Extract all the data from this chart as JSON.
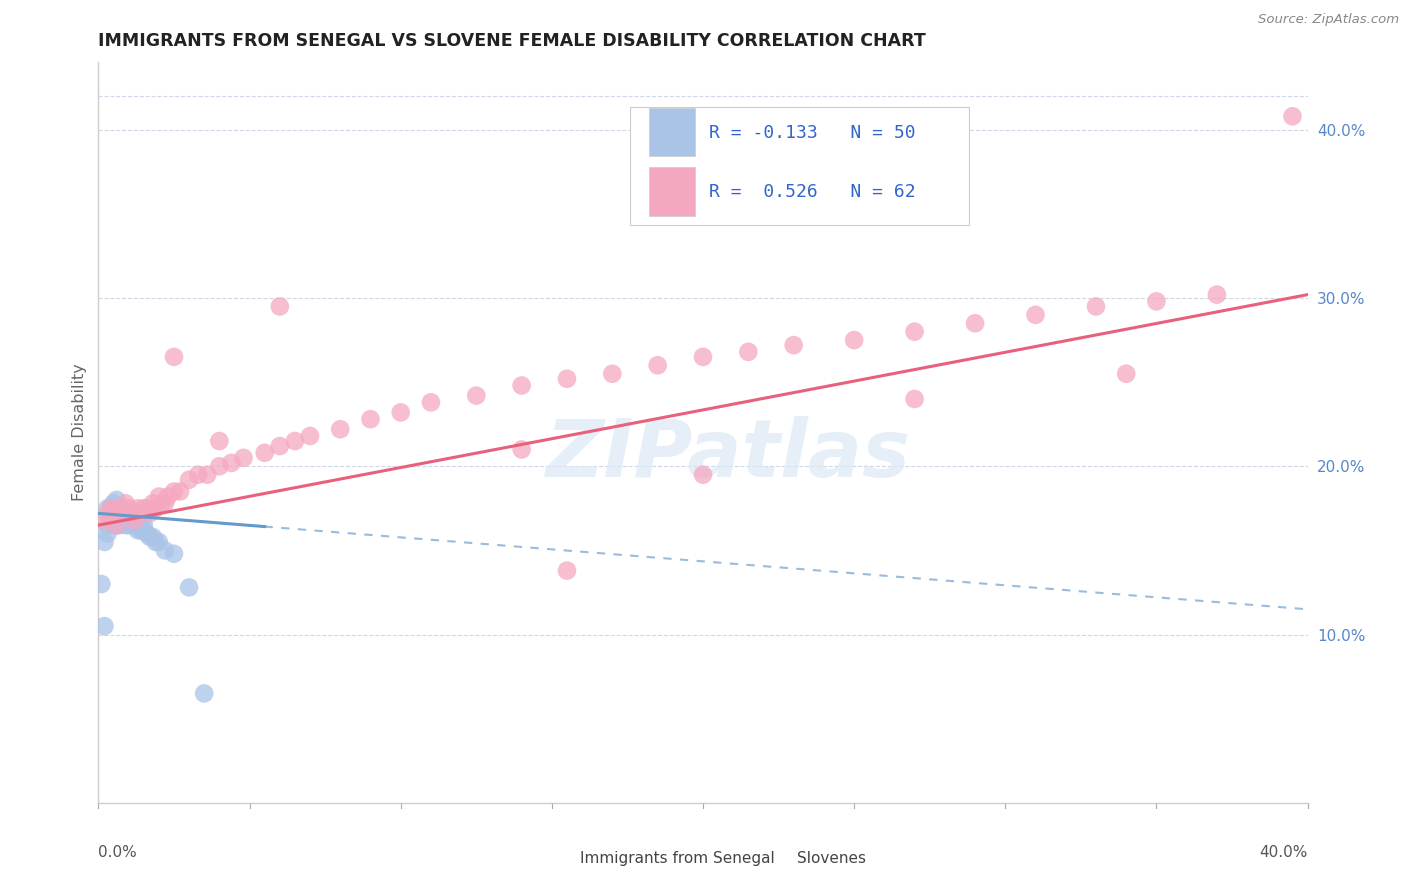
{
  "title": "IMMIGRANTS FROM SENEGAL VS SLOVENE FEMALE DISABILITY CORRELATION CHART",
  "source": "Source: ZipAtlas.com",
  "ylabel": "Female Disability",
  "xmin": 0.0,
  "xmax": 0.4,
  "ymin": 0.0,
  "ymax": 0.44,
  "ytick_vals": [
    0.1,
    0.2,
    0.3,
    0.4
  ],
  "ytick_labels": [
    "10.0%",
    "20.0%",
    "30.0%",
    "40.0%"
  ],
  "R_blue": -0.133,
  "N_blue": 50,
  "R_pink": 0.526,
  "N_pink": 62,
  "blue_color": "#aac4e8",
  "pink_color": "#f4a8bf",
  "trend_blue_solid_color": "#6699cc",
  "trend_blue_dash_color": "#99bbdd",
  "trend_pink_color": "#e8607a",
  "watermark_text": "ZIPatlas",
  "legend_labels": [
    "Immigrants from Senegal",
    "Slovenes"
  ],
  "blue_scatter_x": [
    0.001,
    0.002,
    0.002,
    0.003,
    0.003,
    0.003,
    0.004,
    0.004,
    0.004,
    0.004,
    0.005,
    0.005,
    0.005,
    0.005,
    0.006,
    0.006,
    0.006,
    0.006,
    0.006,
    0.007,
    0.007,
    0.007,
    0.007,
    0.008,
    0.008,
    0.008,
    0.009,
    0.009,
    0.009,
    0.01,
    0.01,
    0.01,
    0.011,
    0.011,
    0.012,
    0.012,
    0.013,
    0.013,
    0.014,
    0.015,
    0.015,
    0.016,
    0.017,
    0.018,
    0.019,
    0.02,
    0.022,
    0.025,
    0.03,
    0.035
  ],
  "blue_scatter_y": [
    0.13,
    0.155,
    0.105,
    0.165,
    0.16,
    0.175,
    0.168,
    0.17,
    0.175,
    0.172,
    0.168,
    0.172,
    0.165,
    0.178,
    0.168,
    0.172,
    0.175,
    0.165,
    0.18,
    0.165,
    0.17,
    0.172,
    0.168,
    0.17,
    0.175,
    0.168,
    0.168,
    0.172,
    0.165,
    0.165,
    0.17,
    0.168,
    0.172,
    0.168,
    0.165,
    0.168,
    0.162,
    0.165,
    0.162,
    0.165,
    0.162,
    0.16,
    0.158,
    0.158,
    0.155,
    0.155,
    0.15,
    0.148,
    0.128,
    0.065
  ],
  "pink_scatter_x": [
    0.002,
    0.003,
    0.004,
    0.005,
    0.006,
    0.007,
    0.008,
    0.009,
    0.01,
    0.011,
    0.012,
    0.013,
    0.014,
    0.015,
    0.016,
    0.017,
    0.018,
    0.019,
    0.02,
    0.021,
    0.022,
    0.023,
    0.025,
    0.027,
    0.03,
    0.033,
    0.036,
    0.04,
    0.044,
    0.048,
    0.055,
    0.06,
    0.065,
    0.07,
    0.08,
    0.09,
    0.1,
    0.11,
    0.125,
    0.14,
    0.155,
    0.17,
    0.185,
    0.2,
    0.215,
    0.23,
    0.25,
    0.27,
    0.29,
    0.31,
    0.33,
    0.35,
    0.37,
    0.04,
    0.14,
    0.27,
    0.34,
    0.06,
    0.155,
    0.2,
    0.395,
    0.025
  ],
  "pink_scatter_y": [
    0.168,
    0.172,
    0.175,
    0.172,
    0.165,
    0.175,
    0.172,
    0.178,
    0.175,
    0.172,
    0.168,
    0.175,
    0.172,
    0.175,
    0.175,
    0.172,
    0.178,
    0.175,
    0.182,
    0.178,
    0.178,
    0.182,
    0.185,
    0.185,
    0.192,
    0.195,
    0.195,
    0.2,
    0.202,
    0.205,
    0.208,
    0.212,
    0.215,
    0.218,
    0.222,
    0.228,
    0.232,
    0.238,
    0.242,
    0.248,
    0.252,
    0.255,
    0.26,
    0.265,
    0.268,
    0.272,
    0.275,
    0.28,
    0.285,
    0.29,
    0.295,
    0.298,
    0.302,
    0.215,
    0.21,
    0.24,
    0.255,
    0.295,
    0.138,
    0.195,
    0.408,
    0.265
  ],
  "blue_trend_x0": 0.0,
  "blue_trend_x1": 0.4,
  "blue_trend_y0": 0.172,
  "blue_trend_y1": 0.115,
  "pink_trend_x0": 0.0,
  "pink_trend_x1": 0.4,
  "pink_trend_y0": 0.165,
  "pink_trend_y1": 0.302
}
